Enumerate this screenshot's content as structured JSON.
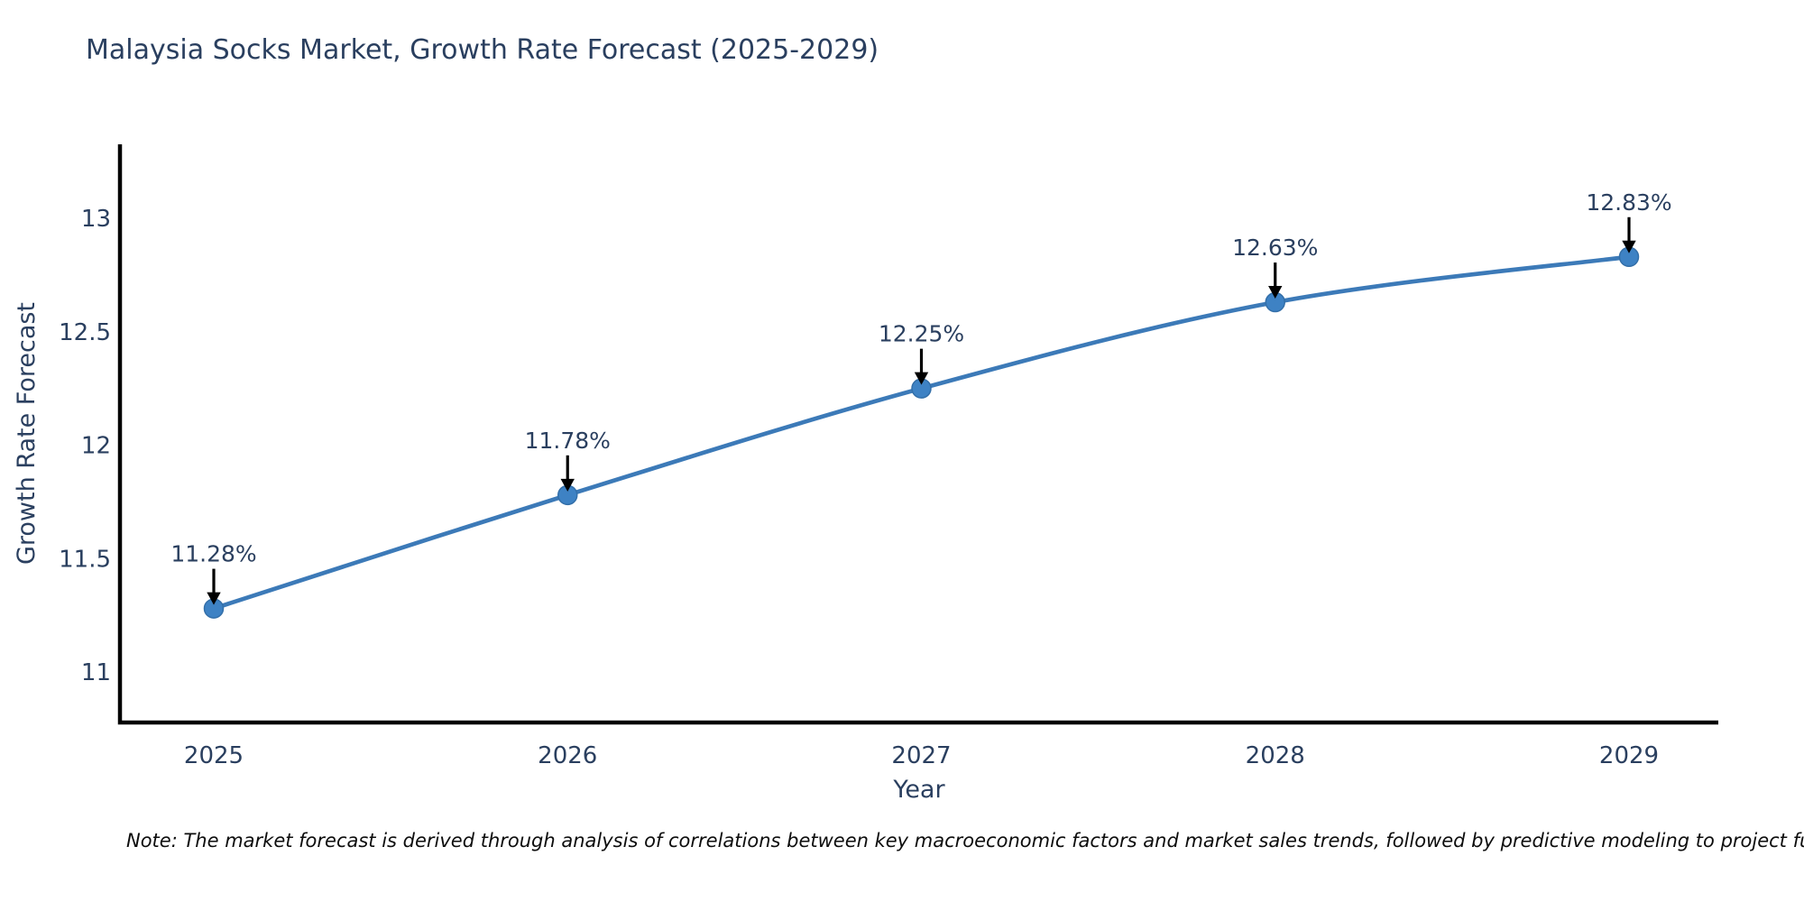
{
  "page": {
    "title": "Malaysia Socks Market, Growth Rate Forecast (2025-2029)",
    "footnote": "Note: The market forecast is derived through analysis of correlations between key macroeconomic factors and market sales trends, followed by predictive modeling to project future sal"
  },
  "chart_data": {
    "type": "line",
    "title": "Malaysia Socks Market, Growth Rate Forecast (2025-2029)",
    "xlabel": "Year",
    "ylabel": "Growth Rate Forecast",
    "categories": [
      "2025",
      "2026",
      "2027",
      "2028",
      "2029"
    ],
    "values": [
      11.28,
      11.78,
      12.25,
      12.63,
      12.83
    ],
    "point_labels": [
      "11.28%",
      "11.78%",
      "12.25%",
      "12.63%",
      "12.83%"
    ],
    "y_ticks": [
      11,
      11.5,
      12,
      12.5,
      13
    ],
    "ylim": [
      10.78,
      13.33
    ],
    "grid": false,
    "legend_position": "none",
    "annotations": "value label with downward black arrow above each data point",
    "marker_shape": "circle",
    "colors": {
      "line": "#3c7ab8",
      "marker": "#3e82c4",
      "marker_edge": "#336fa9",
      "axis": "#000000",
      "tick_text": "#2a3f5f",
      "label_text": "#2a3f5f",
      "arrow": "#000000",
      "note_text": "#0d0d0d",
      "background": "#ffffff"
    }
  }
}
